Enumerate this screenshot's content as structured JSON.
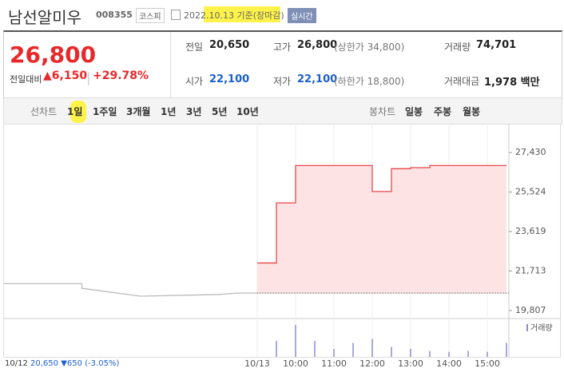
{
  "header": {
    "name": "남선알미우",
    "code": "008355",
    "market": "코스피",
    "date": "2022.10.13 기준(장마감)",
    "realtime": "실시간"
  },
  "summary": {
    "price": "26,800",
    "change_label": "전일대비",
    "change": "6,150",
    "change_rate": "+29.78%"
  },
  "stats": [
    [
      {
        "label": "전일",
        "value": "20,650"
      },
      {
        "label": "고가",
        "value": "26,800",
        "note": "(상한가 34,800)"
      },
      {
        "label": "거래량",
        "value": "74,701"
      }
    ],
    [
      {
        "label": "시가",
        "value": "22,100"
      },
      {
        "label": "저가",
        "value": "22,100",
        "note": "(하한가 18,800)"
      },
      {
        "label": "거래대금",
        "value": "1,978 백만"
      }
    ]
  ],
  "tabs": {
    "line_label": "선차트",
    "line": [
      "1일",
      "1주일",
      "3개월",
      "1년",
      "3년",
      "5년",
      "10년"
    ],
    "candle_label": "봉차트",
    "candle": [
      "일봉",
      "주봉",
      "월봉"
    ]
  },
  "chart_data": {
    "type": "line",
    "ylim": [
      19460,
      28240
    ],
    "yticks": [
      {
        "value": 27430,
        "label": "27,430"
      },
      {
        "value": 25524,
        "label": "25,524"
      },
      {
        "value": 23619,
        "label": "23,619"
      },
      {
        "value": 21713,
        "label": "21,713"
      },
      {
        "value": 19807,
        "label": "19,807"
      }
    ],
    "xticks": [
      {
        "value": "09:00",
        "label": "10/13"
      },
      "10:00",
      "11:00",
      "12:00",
      "13:00",
      "14:00",
      "15:00"
    ],
    "reference_line": 20650,
    "series": [
      {
        "color": "#bbbbbb",
        "x": [
          "09:00",
          "11:00",
          "11:00",
          "12:30",
          "14:30",
          "15:00",
          "15:30"
        ],
        "values": [
          21100,
          21100,
          20880,
          20500,
          20580,
          20650,
          20650
        ]
      },
      {
        "color": "#e8474a",
        "fill": "#fde3e4",
        "x": [
          "09:00",
          "09:30",
          "10:00",
          "12:00",
          "12:30",
          "13:00",
          "13:30",
          "15:30"
        ],
        "values": [
          22100,
          25000,
          26800,
          25550,
          26650,
          26700,
          26800,
          26800
        ]
      }
    ],
    "volume": {
      "label": "거래량",
      "color": "#8b8bd0",
      "x": [
        "09:30",
        "10:00",
        "10:30",
        "11:00",
        "11:30",
        "12:00",
        "12:30",
        "13:00",
        "13:30",
        "14:00",
        "14:30",
        "15:00",
        "15:30"
      ],
      "values": [
        8000,
        16000,
        8000,
        4000,
        7000,
        9000,
        5000,
        4000,
        3000,
        2500,
        3000,
        2500,
        7000
      ]
    },
    "footnote": {
      "date": "10/12",
      "close": "20,650",
      "change": "▼650",
      "rate": "(-3.05%)"
    }
  }
}
